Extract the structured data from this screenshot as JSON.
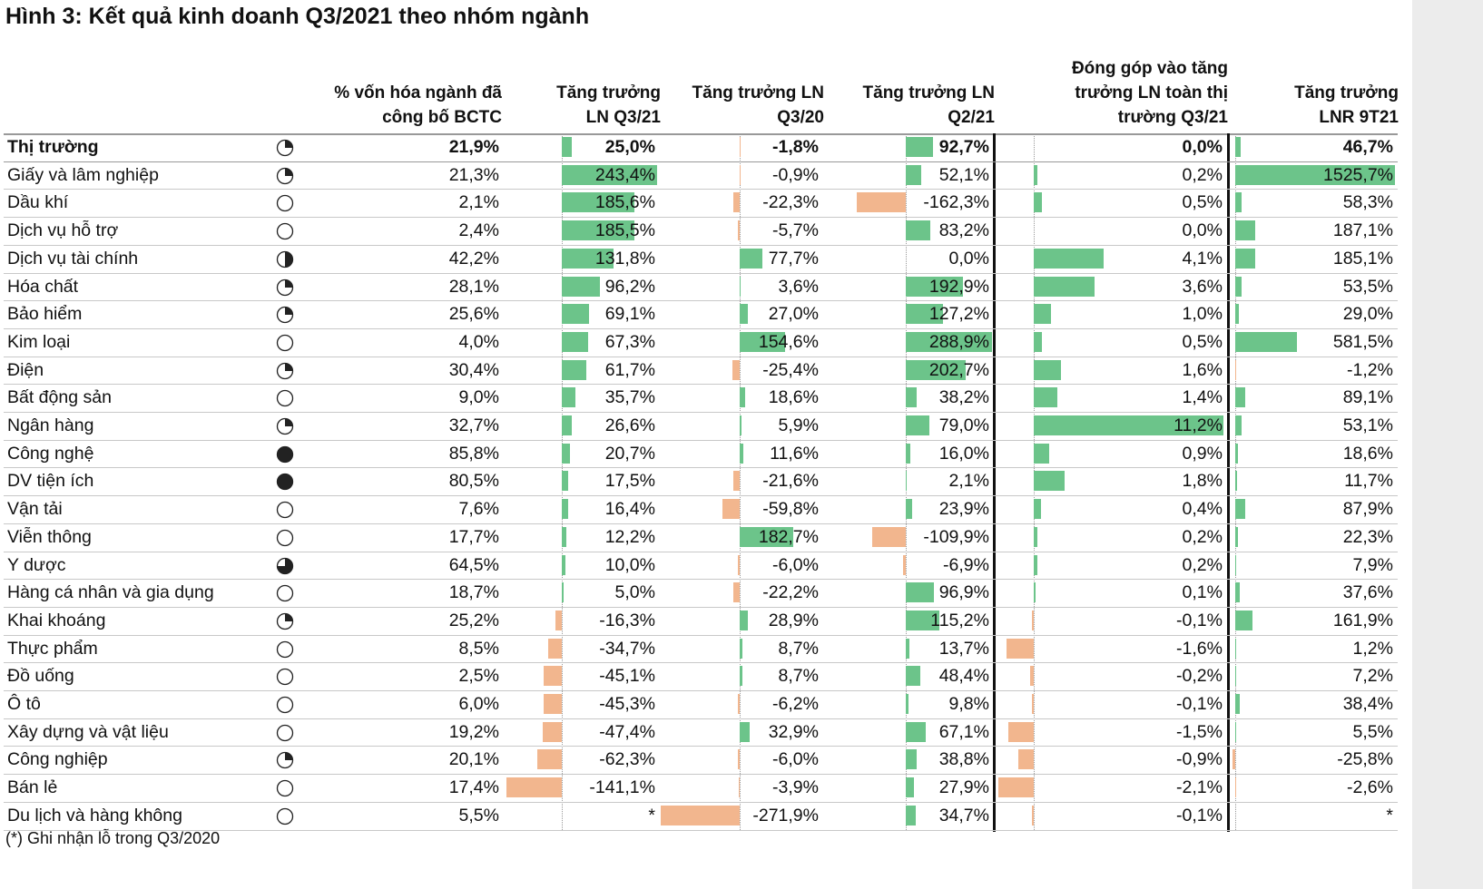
{
  "title": "Hình 3: Kết quả kinh doanh Q3/2021 theo nhóm ngành",
  "footnote": "(*) Ghi nhận lỗ trong Q3/2020",
  "positive_color": "#6cc48a",
  "negative_color": "#f2b68e",
  "columns": [
    {
      "header": [
        "% vốn hóa ngành đã",
        "công bố BCTC"
      ]
    },
    {
      "header": [
        "Tăng trưởng",
        "LN Q3/21"
      ],
      "lim": [
        -145,
        245
      ]
    },
    {
      "header": [
        "Tăng trưởng LN",
        "Q3/20"
      ],
      "lim": [
        -272,
        280
      ]
    },
    {
      "header": [
        "Tăng trưởng LN",
        "Q2/21"
      ],
      "lim": [
        -175,
        290
      ]
    },
    {
      "header": [
        "Đóng góp vào tăng",
        "trưởng LN toàn thị",
        "trường Q3/21"
      ],
      "lim": [
        -2.2,
        11.3
      ]
    },
    {
      "header": [
        "Tăng trưởng",
        "LNR 9T21"
      ],
      "lim": [
        -30,
        1530
      ]
    }
  ],
  "rows": [
    {
      "name": "Thị trường",
      "ball": 0.25,
      "cells": [
        "21,9%",
        {
          "value": 25.0,
          "label": "25,0%"
        },
        {
          "value": -1.8,
          "label": "-1,8%"
        },
        {
          "value": 92.7,
          "label": "92,7%"
        },
        {
          "value": 0.0,
          "label": "0,0%"
        },
        {
          "value": 46.7,
          "label": "46,7%"
        }
      ]
    },
    {
      "name": "Giấy và lâm nghiệp",
      "ball": 0.25,
      "cells": [
        "21,3%",
        {
          "value": 243.4,
          "label": "243,4%"
        },
        {
          "value": -0.9,
          "label": "-0,9%"
        },
        {
          "value": 52.1,
          "label": "52,1%"
        },
        {
          "value": 0.2,
          "label": "0,2%"
        },
        {
          "value": 1525.7,
          "label": "1525,7%"
        }
      ]
    },
    {
      "name": "Dầu khí",
      "ball": 0,
      "cells": [
        "2,1%",
        {
          "value": 185.6,
          "label": "185,6%"
        },
        {
          "value": -22.3,
          "label": "-22,3%"
        },
        {
          "value": -162.3,
          "label": "-162,3%"
        },
        {
          "value": 0.5,
          "label": "0,5%"
        },
        {
          "value": 58.3,
          "label": "58,3%"
        }
      ]
    },
    {
      "name": "Dịch vụ hỗ trợ",
      "ball": 0,
      "cells": [
        "2,4%",
        {
          "value": 185.5,
          "label": "185,5%"
        },
        {
          "value": -5.7,
          "label": "-5,7%"
        },
        {
          "value": 83.2,
          "label": "83,2%"
        },
        {
          "value": 0.0,
          "label": "0,0%"
        },
        {
          "value": 187.1,
          "label": "187,1%"
        }
      ]
    },
    {
      "name": "Dịch vụ tài chính",
      "ball": 0.5,
      "cells": [
        "42,2%",
        {
          "value": 131.8,
          "label": "131,8%"
        },
        {
          "value": 77.7,
          "label": "77,7%"
        },
        {
          "value": 0.0,
          "label": "0,0%"
        },
        {
          "value": 4.1,
          "label": "4,1%"
        },
        {
          "value": 185.1,
          "label": "185,1%"
        }
      ]
    },
    {
      "name": "Hóa chất",
      "ball": 0.25,
      "cells": [
        "28,1%",
        {
          "value": 96.2,
          "label": "96,2%"
        },
        {
          "value": 3.6,
          "label": "3,6%"
        },
        {
          "value": 192.9,
          "label": "192,9%"
        },
        {
          "value": 3.6,
          "label": "3,6%"
        },
        {
          "value": 53.5,
          "label": "53,5%"
        }
      ]
    },
    {
      "name": "Bảo hiểm",
      "ball": 0.25,
      "cells": [
        "25,6%",
        {
          "value": 69.1,
          "label": "69,1%"
        },
        {
          "value": 27.0,
          "label": "27,0%"
        },
        {
          "value": 127.2,
          "label": "127,2%"
        },
        {
          "value": 1.0,
          "label": "1,0%"
        },
        {
          "value": 29.0,
          "label": "29,0%"
        }
      ]
    },
    {
      "name": "Kim loại",
      "ball": 0,
      "cells": [
        "4,0%",
        {
          "value": 67.3,
          "label": "67,3%"
        },
        {
          "value": 154.6,
          "label": "154,6%"
        },
        {
          "value": 288.9,
          "label": "288,9%"
        },
        {
          "value": 0.5,
          "label": "0,5%"
        },
        {
          "value": 581.5,
          "label": "581,5%"
        }
      ]
    },
    {
      "name": "Điện",
      "ball": 0.25,
      "cells": [
        "30,4%",
        {
          "value": 61.7,
          "label": "61,7%"
        },
        {
          "value": -25.4,
          "label": "-25,4%"
        },
        {
          "value": 202.7,
          "label": "202,7%"
        },
        {
          "value": 1.6,
          "label": "1,6%"
        },
        {
          "value": -1.2,
          "label": "-1,2%"
        }
      ]
    },
    {
      "name": "Bất động sản",
      "ball": 0,
      "cells": [
        "9,0%",
        {
          "value": 35.7,
          "label": "35,7%"
        },
        {
          "value": 18.6,
          "label": "18,6%"
        },
        {
          "value": 38.2,
          "label": "38,2%"
        },
        {
          "value": 1.4,
          "label": "1,4%"
        },
        {
          "value": 89.1,
          "label": "89,1%"
        }
      ]
    },
    {
      "name": "Ngân hàng",
      "ball": 0.25,
      "cells": [
        "32,7%",
        {
          "value": 26.6,
          "label": "26,6%"
        },
        {
          "value": 5.9,
          "label": "5,9%"
        },
        {
          "value": 79.0,
          "label": "79,0%"
        },
        {
          "value": 11.2,
          "label": "11,2%"
        },
        {
          "value": 53.1,
          "label": "53,1%"
        }
      ]
    },
    {
      "name": "Công nghệ",
      "ball": 1,
      "cells": [
        "85,8%",
        {
          "value": 20.7,
          "label": "20,7%"
        },
        {
          "value": 11.6,
          "label": "11,6%"
        },
        {
          "value": 16.0,
          "label": "16,0%"
        },
        {
          "value": 0.9,
          "label": "0,9%"
        },
        {
          "value": 18.6,
          "label": "18,6%"
        }
      ]
    },
    {
      "name": "DV tiện ích",
      "ball": 1,
      "cells": [
        "80,5%",
        {
          "value": 17.5,
          "label": "17,5%"
        },
        {
          "value": -21.6,
          "label": "-21,6%"
        },
        {
          "value": 2.1,
          "label": "2,1%"
        },
        {
          "value": 1.8,
          "label": "1,8%"
        },
        {
          "value": 11.7,
          "label": "11,7%"
        }
      ]
    },
    {
      "name": "Vận tải",
      "ball": 0,
      "cells": [
        "7,6%",
        {
          "value": 16.4,
          "label": "16,4%"
        },
        {
          "value": -59.8,
          "label": "-59,8%"
        },
        {
          "value": 23.9,
          "label": "23,9%"
        },
        {
          "value": 0.4,
          "label": "0,4%"
        },
        {
          "value": 87.9,
          "label": "87,9%"
        }
      ]
    },
    {
      "name": "Viễn thông",
      "ball": 0,
      "cells": [
        "17,7%",
        {
          "value": 12.2,
          "label": "12,2%"
        },
        {
          "value": 182.7,
          "label": "182,7%"
        },
        {
          "value": -109.9,
          "label": "-109,9%"
        },
        {
          "value": 0.2,
          "label": "0,2%"
        },
        {
          "value": 22.3,
          "label": "22,3%"
        }
      ]
    },
    {
      "name": "Y dược",
      "ball": 0.75,
      "cells": [
        "64,5%",
        {
          "value": 10.0,
          "label": "10,0%"
        },
        {
          "value": -6.0,
          "label": "-6,0%"
        },
        {
          "value": -6.9,
          "label": "-6,9%"
        },
        {
          "value": 0.2,
          "label": "0,2%"
        },
        {
          "value": 7.9,
          "label": "7,9%"
        }
      ]
    },
    {
      "name": "Hàng cá nhân và gia dụng",
      "ball": 0,
      "cells": [
        "18,7%",
        {
          "value": 5.0,
          "label": "5,0%"
        },
        {
          "value": -22.2,
          "label": "-22,2%"
        },
        {
          "value": 96.9,
          "label": "96,9%"
        },
        {
          "value": 0.1,
          "label": "0,1%"
        },
        {
          "value": 37.6,
          "label": "37,6%"
        }
      ]
    },
    {
      "name": "Khai khoáng",
      "ball": 0.25,
      "cells": [
        "25,2%",
        {
          "value": -16.3,
          "label": "-16,3%"
        },
        {
          "value": 28.9,
          "label": "28,9%"
        },
        {
          "value": 115.2,
          "label": "115,2%"
        },
        {
          "value": -0.1,
          "label": "-0,1%"
        },
        {
          "value": 161.9,
          "label": "161,9%"
        }
      ]
    },
    {
      "name": "Thực phẩm",
      "ball": 0,
      "cells": [
        "8,5%",
        {
          "value": -34.7,
          "label": "-34,7%"
        },
        {
          "value": 8.7,
          "label": "8,7%"
        },
        {
          "value": 13.7,
          "label": "13,7%"
        },
        {
          "value": -1.6,
          "label": "-1,6%"
        },
        {
          "value": 1.2,
          "label": "1,2%"
        }
      ]
    },
    {
      "name": "Đồ uống",
      "ball": 0,
      "cells": [
        "2,5%",
        {
          "value": -45.1,
          "label": "-45,1%"
        },
        {
          "value": 8.7,
          "label": "8,7%"
        },
        {
          "value": 48.4,
          "label": "48,4%"
        },
        {
          "value": -0.2,
          "label": "-0,2%"
        },
        {
          "value": 7.2,
          "label": "7,2%"
        }
      ]
    },
    {
      "name": "Ô tô",
      "ball": 0,
      "cells": [
        "6,0%",
        {
          "value": -45.3,
          "label": "-45,3%"
        },
        {
          "value": -6.2,
          "label": "-6,2%"
        },
        {
          "value": 9.8,
          "label": "9,8%"
        },
        {
          "value": -0.1,
          "label": "-0,1%"
        },
        {
          "value": 38.4,
          "label": "38,4%"
        }
      ]
    },
    {
      "name": "Xây dựng và vật liệu",
      "ball": 0,
      "cells": [
        "19,2%",
        {
          "value": -47.4,
          "label": "-47,4%"
        },
        {
          "value": 32.9,
          "label": "32,9%"
        },
        {
          "value": 67.1,
          "label": "67,1%"
        },
        {
          "value": -1.5,
          "label": "-1,5%"
        },
        {
          "value": 5.5,
          "label": "5,5%"
        }
      ]
    },
    {
      "name": "Công nghiệp",
      "ball": 0.25,
      "cells": [
        "20,1%",
        {
          "value": -62.3,
          "label": "-62,3%"
        },
        {
          "value": -6.0,
          "label": "-6,0%"
        },
        {
          "value": 38.8,
          "label": "38,8%"
        },
        {
          "value": -0.9,
          "label": "-0,9%"
        },
        {
          "value": -25.8,
          "label": "-25,8%"
        }
      ]
    },
    {
      "name": "Bán lẻ",
      "ball": 0,
      "cells": [
        "17,4%",
        {
          "value": -141.1,
          "label": "-141,1%"
        },
        {
          "value": -3.9,
          "label": "-3,9%"
        },
        {
          "value": 27.9,
          "label": "27,9%"
        },
        {
          "value": -2.1,
          "label": "-2,1%"
        },
        {
          "value": -2.6,
          "label": "-2,6%"
        }
      ]
    },
    {
      "name": "Du lịch và hàng không",
      "ball": 0,
      "cells": [
        "5,5%",
        {
          "value": null,
          "label": "*"
        },
        {
          "value": -271.9,
          "label": "-271,9%"
        },
        {
          "value": 34.7,
          "label": "34,7%"
        },
        {
          "value": -0.1,
          "label": "-0,1%"
        },
        {
          "value": null,
          "label": "*"
        }
      ]
    }
  ]
}
